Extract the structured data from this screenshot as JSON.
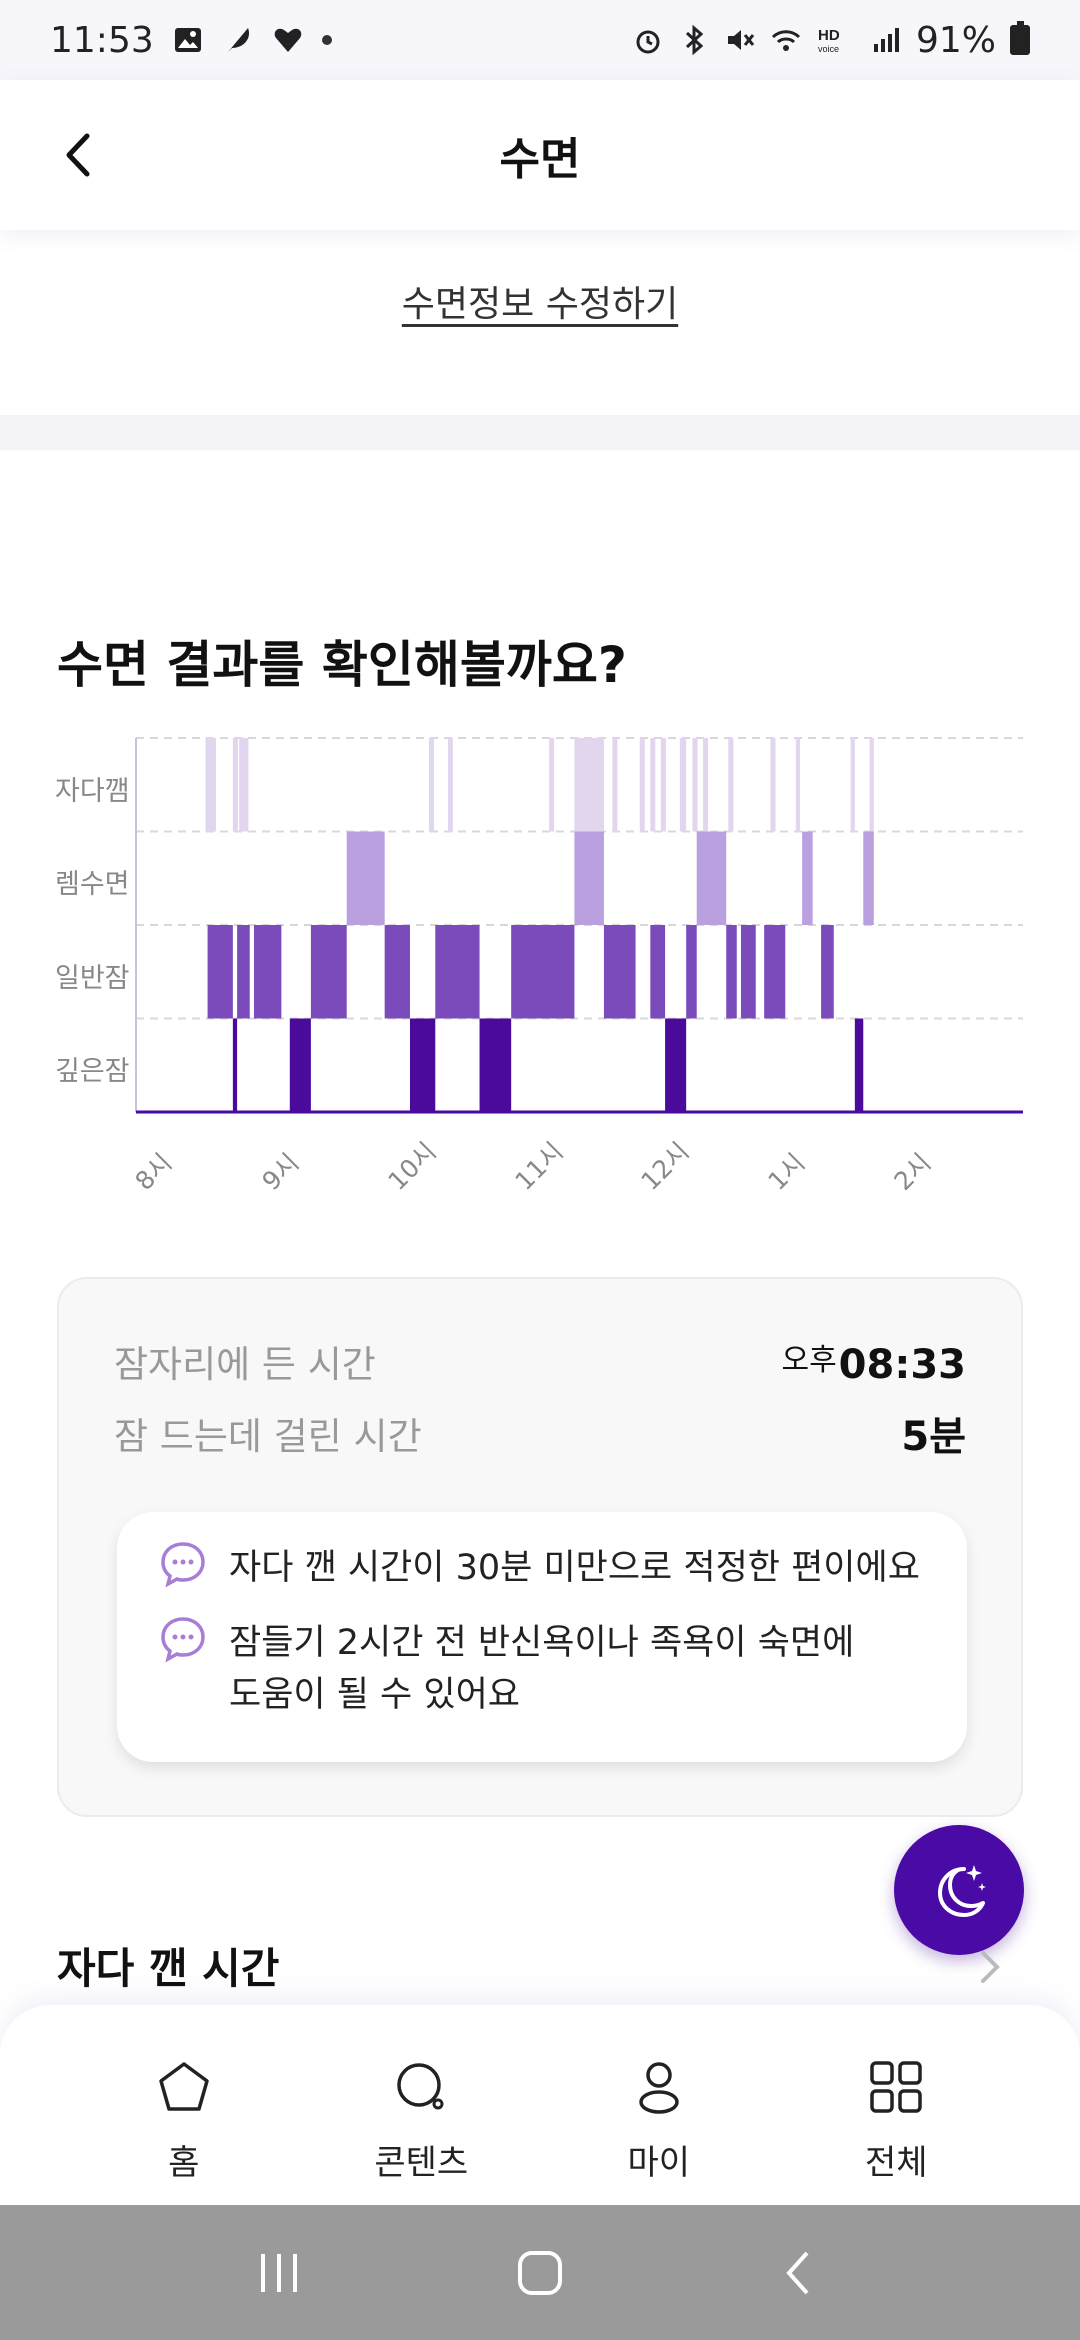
{
  "status_bar": {
    "time": "11:53",
    "battery": "91%"
  },
  "header": {
    "title": "수면"
  },
  "edit_link": "수면정보 수정하기",
  "section_title": "수면 결과를 확인해볼까요?",
  "chart_data": {
    "type": "heatmap",
    "y_categories": [
      "자다깸",
      "렘수면",
      "일반잠",
      "깊은잠"
    ],
    "x_ticks": [
      "8시",
      "9시",
      "10시",
      "11시",
      "12시",
      "1시",
      "2시"
    ],
    "colors": {
      "자다깸": "#e2d6ef",
      "렘수면": "#bba0e0",
      "일반잠": "#7b4bbb",
      "깊은잠": "#4a0a9c"
    },
    "segments": [
      {
        "stage": "일반잠",
        "start": "8:33",
        "end": "8:45"
      },
      {
        "stage": "깊은잠",
        "start": "8:45",
        "end": "8:47"
      },
      {
        "stage": "일반잠",
        "start": "8:47",
        "end": "8:53"
      },
      {
        "stage": "일반잠",
        "start": "8:55",
        "end": "9:08"
      },
      {
        "stage": "깊은잠",
        "start": "9:12",
        "end": "9:22"
      },
      {
        "stage": "일반잠",
        "start": "9:22",
        "end": "9:39"
      },
      {
        "stage": "렘수면",
        "start": "9:39",
        "end": "9:57"
      },
      {
        "stage": "일반잠",
        "start": "9:57",
        "end": "10:09"
      },
      {
        "stage": "깊은잠",
        "start": "10:09",
        "end": "10:21"
      },
      {
        "stage": "일반잠",
        "start": "10:21",
        "end": "10:42"
      },
      {
        "stage": "깊은잠",
        "start": "10:42",
        "end": "10:57"
      },
      {
        "stage": "일반잠",
        "start": "10:57",
        "end": "11:27"
      },
      {
        "stage": "렘수면",
        "start": "11:27",
        "end": "11:41"
      },
      {
        "stage": "일반잠",
        "start": "11:41",
        "end": "11:56"
      },
      {
        "stage": "일반잠",
        "start": "12:03",
        "end": "12:10"
      },
      {
        "stage": "깊은잠",
        "start": "12:10",
        "end": "12:20"
      },
      {
        "stage": "일반잠",
        "start": "12:20",
        "end": "12:25"
      },
      {
        "stage": "렘수면",
        "start": "12:25",
        "end": "12:39"
      },
      {
        "stage": "일반잠",
        "start": "12:39",
        "end": "12:44"
      },
      {
        "stage": "일반잠",
        "start": "12:46",
        "end": "12:53"
      },
      {
        "stage": "일반잠",
        "start": "12:57",
        "end": "1:07"
      },
      {
        "stage": "렘수면",
        "start": "1:15",
        "end": "1:20"
      },
      {
        "stage": "일반잠",
        "start": "1:24",
        "end": "1:30"
      },
      {
        "stage": "깊은잠",
        "start": "1:40",
        "end": "1:44"
      },
      {
        "stage": "렘수면",
        "start": "1:44",
        "end": "1:49"
      }
    ],
    "awake_marks": [
      "8:32",
      "8:34",
      "8:45",
      "8:48",
      "8:50",
      "10:18",
      "10:27",
      "11:15",
      "11:38",
      "11:45",
      "11:58",
      "12:03",
      "12:08",
      "12:23",
      "12:28",
      "12:40",
      "1:00"
    ]
  },
  "summary": {
    "bedtime_label": "잠자리에 든 시간",
    "bedtime_ampm": "오후",
    "bedtime_value": "08:33",
    "latency_label": "잠 드는데 걸린 시간",
    "latency_value": "5분",
    "tip1": "자다 깬 시간이 30분 미만으로 적정한 편이에요",
    "tip2_line1": "잠들기 2시간 전 반신욕이나 족욕이 숙면에",
    "tip2_line2": "도움이 될 수 있어요"
  },
  "wake_section_title": "자다 깬 시간",
  "bottom_nav": [
    {
      "label": "홈",
      "icon": "home-icon"
    },
    {
      "label": "콘텐츠",
      "icon": "search-icon"
    },
    {
      "label": "마이",
      "icon": "user-icon"
    },
    {
      "label": "전체",
      "icon": "grid-icon"
    }
  ]
}
